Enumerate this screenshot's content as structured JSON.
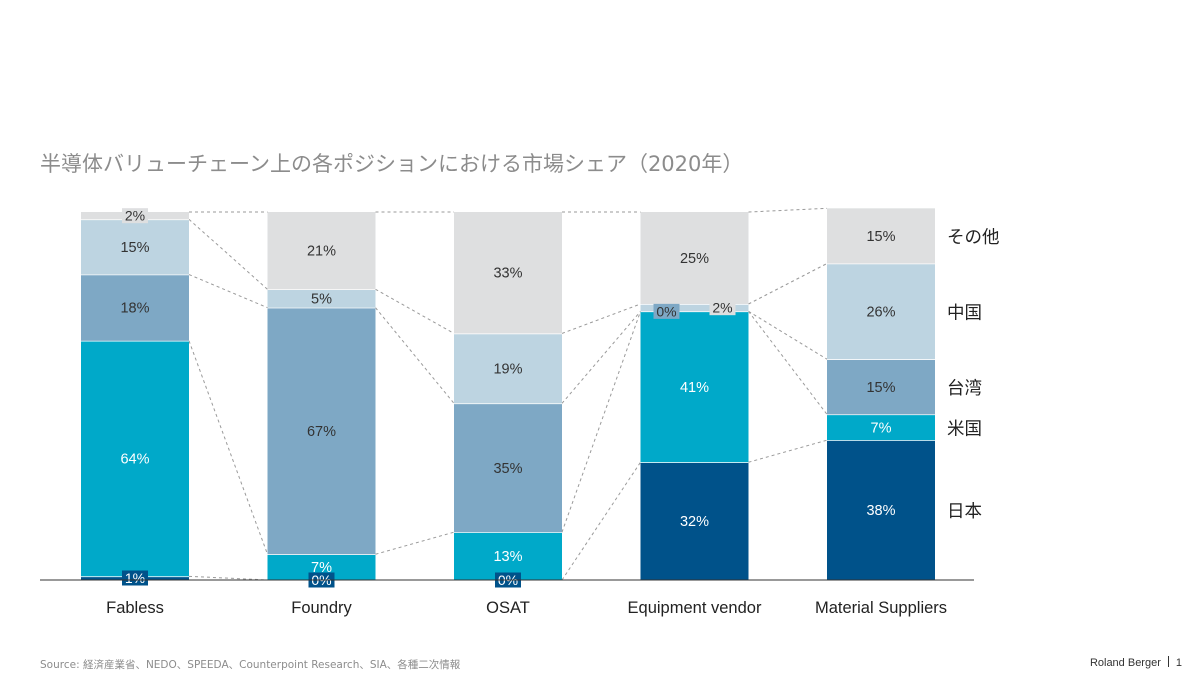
{
  "chart_data": {
    "type": "bar",
    "stacked": true,
    "percent": true,
    "title": "半導体バリューチェーン上の各ポジションにおける市場シェア（2020年）",
    "categories": [
      "Fabless",
      "Foundry",
      "OSAT",
      "Equipment vendor",
      "Material Suppliers"
    ],
    "series": [
      {
        "name": "日本",
        "color": "#00528a",
        "values": [
          1,
          0,
          0,
          32,
          38
        ]
      },
      {
        "name": "米国",
        "color": "#00a9c9",
        "values": [
          64,
          7,
          13,
          41,
          7
        ]
      },
      {
        "name": "台湾",
        "color": "#7ea8c5",
        "values": [
          18,
          67,
          35,
          0,
          15
        ]
      },
      {
        "name": "中国",
        "color": "#bdd4e1",
        "values": [
          15,
          5,
          19,
          2,
          26
        ]
      },
      {
        "name": "その他",
        "color": "#dedfe0",
        "values": [
          2,
          21,
          33,
          25,
          15
        ]
      }
    ],
    "ylim": [
      0,
      100
    ],
    "legend": "right",
    "grid": false
  },
  "footer": {
    "source": "Source: 経済産業省、NEDO、SPEEDA、Counterpoint Research、SIA、各種二次情報",
    "brand": "Roland Berger",
    "page_number": "1"
  }
}
